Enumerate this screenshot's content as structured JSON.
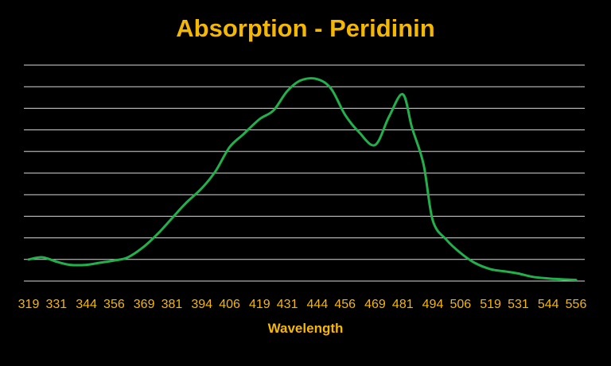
{
  "chart_data": {
    "type": "line",
    "title": "Absorption - Peridinin",
    "xlabel": "Wavelength",
    "ylabel": "",
    "x_tick_labels": [
      "319",
      "331",
      "344",
      "356",
      "369",
      "381",
      "394",
      "406",
      "419",
      "431",
      "444",
      "456",
      "469",
      "481",
      "494",
      "506",
      "519",
      "531",
      "544",
      "556"
    ],
    "y_axis_labels_shown": false,
    "ylim": [
      0,
      10
    ],
    "grid": true,
    "gridline_count": 10,
    "legend": "none",
    "series": [
      {
        "color": "#22b04c",
        "x": [
          319,
          325,
          331,
          337,
          344,
          350,
          356,
          362,
          369,
          375,
          381,
          387,
          394,
          400,
          406,
          412,
          419,
          425,
          431,
          437,
          444,
          450,
          456,
          462,
          469,
          475,
          481,
          485,
          490,
          494,
          500,
          506,
          512,
          519,
          525,
          531,
          537,
          544,
          550,
          556
        ],
        "y": [
          1.0,
          1.1,
          0.9,
          0.75,
          0.75,
          0.85,
          0.95,
          1.1,
          1.6,
          2.2,
          2.9,
          3.6,
          4.3,
          5.1,
          6.2,
          6.8,
          7.5,
          7.9,
          8.8,
          9.3,
          9.35,
          8.9,
          7.7,
          6.9,
          6.3,
          7.6,
          8.65,
          7.1,
          5.4,
          2.8,
          1.9,
          1.3,
          0.85,
          0.55,
          0.45,
          0.35,
          0.2,
          0.12,
          0.08,
          0.05
        ]
      }
    ],
    "colors": {
      "background": "#000000",
      "text": "#f5b800",
      "grid": "#d8d8d8",
      "line": "#22b04c"
    }
  }
}
